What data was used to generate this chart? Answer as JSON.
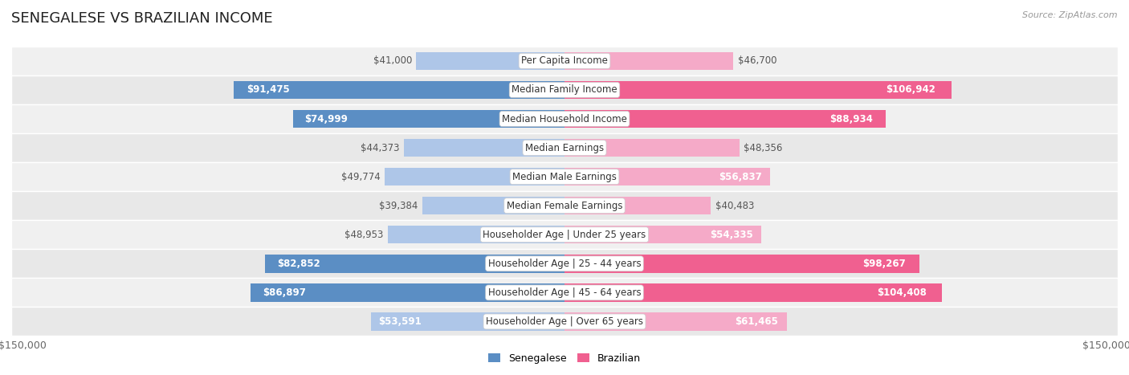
{
  "title": "SENEGALESE VS BRAZILIAN INCOME",
  "source": "Source: ZipAtlas.com",
  "categories": [
    "Per Capita Income",
    "Median Family Income",
    "Median Household Income",
    "Median Earnings",
    "Median Male Earnings",
    "Median Female Earnings",
    "Householder Age | Under 25 years",
    "Householder Age | 25 - 44 years",
    "Householder Age | 45 - 64 years",
    "Householder Age | Over 65 years"
  ],
  "senegalese": [
    41000,
    91475,
    74999,
    44373,
    49774,
    39384,
    48953,
    82852,
    86897,
    53591
  ],
  "brazilian": [
    46700,
    106942,
    88934,
    48356,
    56837,
    40483,
    54335,
    98267,
    104408,
    61465
  ],
  "sen_labels": [
    "$41,000",
    "$91,475",
    "$74,999",
    "$44,373",
    "$49,774",
    "$39,384",
    "$48,953",
    "$82,852",
    "$86,897",
    "$53,591"
  ],
  "bra_labels": [
    "$46,700",
    "$106,942",
    "$88,934",
    "$48,356",
    "$56,837",
    "$40,483",
    "$54,335",
    "$98,267",
    "$104,408",
    "$61,465"
  ],
  "sen_color_light": "#aec6e8",
  "sen_color_dark": "#5b8ec4",
  "bra_color_light": "#f5aac8",
  "bra_color_dark": "#f06090",
  "max_val": 150000,
  "label_color_white": "#ffffff",
  "label_color_dark": "#555555",
  "row_bg_colors": [
    "#f0f0f0",
    "#e8e8e8"
  ],
  "bar_height": 0.62,
  "title_fontsize": 13,
  "label_fontsize": 8.5,
  "category_fontsize": 8.5,
  "dark_threshold": 0.45,
  "inside_label_threshold": 0.35
}
